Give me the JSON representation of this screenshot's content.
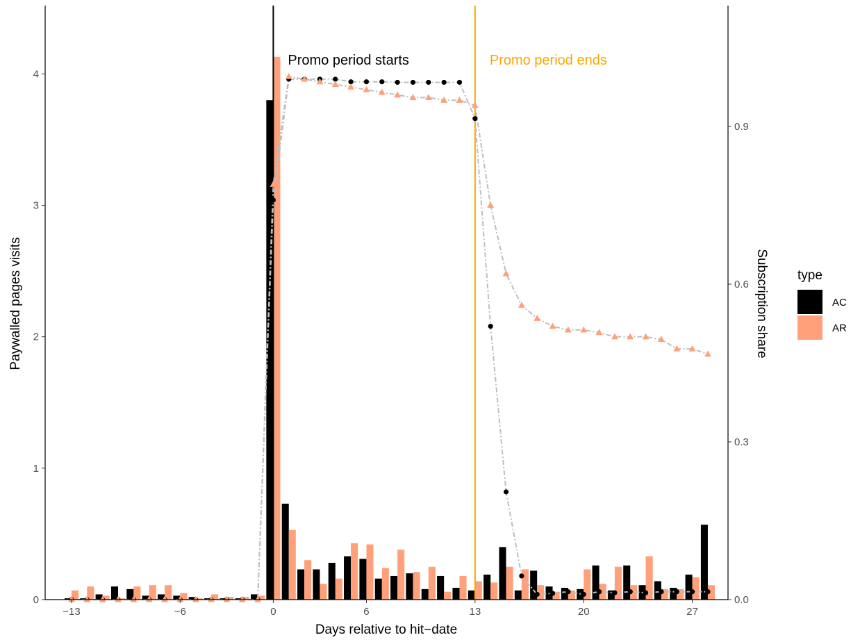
{
  "chart_data": {
    "type": "bar",
    "title": "",
    "xlabel": "Days relative to hit−date",
    "ylabel": "Paywalled pages visits",
    "y2label": "Subscription share",
    "xlim": [
      -14.7,
      29.3
    ],
    "ylim": [
      0,
      4.52
    ],
    "y2lim": [
      0,
      1.13
    ],
    "x_ticks": [
      -13,
      -6,
      0,
      6,
      13,
      20,
      27
    ],
    "x_tick_labels": [
      "−13",
      "−6",
      "0",
      "6",
      "13",
      "20",
      "27"
    ],
    "y_ticks": [
      0,
      1,
      2,
      3,
      4
    ],
    "y_tick_labels": [
      "0",
      "1",
      "2",
      "3",
      "4"
    ],
    "y2_ticks": [
      0.0,
      0.3,
      0.6,
      0.9
    ],
    "y2_tick_labels": [
      "0.0",
      "0.3",
      "0.6",
      "0.9"
    ],
    "grid": false,
    "legend": {
      "title": "type",
      "position": "right",
      "items": [
        {
          "label": "AC",
          "color": "#000000"
        },
        {
          "label": "AR",
          "color": "#FFA07A"
        }
      ]
    },
    "annotations": [
      {
        "text": "Promo period starts",
        "x": 0,
        "color": "#000000"
      },
      {
        "text": "Promo period ends",
        "x": 13,
        "color": "#F5A800"
      }
    ],
    "colors": {
      "AC": "#000000",
      "AR": "#FFA07A",
      "promo_end": "#F5A800",
      "trend": "#BEBEBE"
    },
    "x": [
      -13,
      -12,
      -11,
      -10,
      -9,
      -8,
      -7,
      -6,
      -5,
      -4,
      -3,
      -2,
      -1,
      0,
      1,
      2,
      3,
      4,
      5,
      6,
      7,
      8,
      9,
      10,
      11,
      12,
      13,
      14,
      15,
      16,
      17,
      18,
      19,
      20,
      21,
      22,
      23,
      24,
      25,
      26,
      27,
      28
    ],
    "series": [
      {
        "name": "AC",
        "kind": "bar",
        "axis": "left",
        "values": [
          0.01,
          0.01,
          0.04,
          0.1,
          0.08,
          0.03,
          0.04,
          0.03,
          0.02,
          0.01,
          0.01,
          0.01,
          0.04,
          3.8,
          0.73,
          0.23,
          0.23,
          0.28,
          0.33,
          0.31,
          0.16,
          0.18,
          0.2,
          0.08,
          0.18,
          0.09,
          0.07,
          0.19,
          0.4,
          0.07,
          0.22,
          0.1,
          0.09,
          0.08,
          0.26,
          0.07,
          0.26,
          0.11,
          0.14,
          0.09,
          0.19,
          0.57
        ]
      },
      {
        "name": "AR",
        "kind": "bar",
        "axis": "left",
        "values": [
          0.07,
          0.1,
          0.03,
          0.01,
          0.1,
          0.11,
          0.11,
          0.05,
          0.01,
          0.04,
          0.02,
          0.02,
          0.03,
          4.13,
          0.53,
          0.3,
          0.12,
          0.16,
          0.43,
          0.42,
          0.24,
          0.38,
          0.21,
          0.25,
          0.06,
          0.18,
          0.14,
          0.13,
          0.25,
          0.23,
          0.11,
          0.06,
          0.07,
          0.23,
          0.12,
          0.25,
          0.11,
          0.33,
          0.08,
          0.08,
          0.17,
          0.11
        ]
      },
      {
        "name": "AC",
        "kind": "points",
        "axis": "right",
        "shape": "circle",
        "values": [
          0.0,
          0.0,
          0.0,
          0.0,
          0.0,
          0.0,
          0.0,
          0.0,
          0.0,
          0.0,
          0.0,
          0.0,
          0.0,
          0.76,
          0.99,
          0.99,
          0.99,
          0.99,
          0.985,
          0.985,
          0.985,
          0.984,
          0.984,
          0.984,
          0.984,
          0.984,
          0.915,
          0.52,
          0.205,
          0.045,
          0.01,
          0.012,
          0.015,
          0.01,
          0.015,
          0.013,
          0.015,
          0.013,
          0.015,
          0.015,
          0.015,
          0.015
        ]
      },
      {
        "name": "AR",
        "kind": "points",
        "axis": "right",
        "shape": "triangle",
        "values": [
          0.0,
          0.0,
          0.0,
          0.0,
          0.0,
          0.0,
          0.0,
          0.0,
          0.0,
          0.0,
          0.0,
          0.0,
          0.0,
          0.79,
          0.995,
          0.99,
          0.985,
          0.98,
          0.975,
          0.97,
          0.965,
          0.96,
          0.955,
          0.955,
          0.95,
          0.95,
          0.94,
          0.75,
          0.62,
          0.56,
          0.535,
          0.52,
          0.513,
          0.513,
          0.508,
          0.5,
          0.5,
          0.5,
          0.495,
          0.477,
          0.477,
          0.467
        ]
      }
    ]
  }
}
